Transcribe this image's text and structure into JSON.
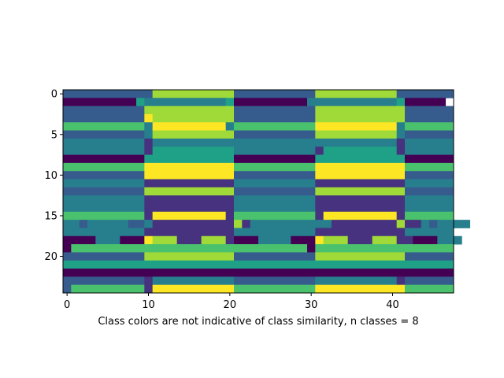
{
  "chart_data": {
    "type": "heatmap",
    "xlabel": "Class colors are not indicative of class similarity, n classes = 8",
    "x_ticks": [
      0,
      10,
      20,
      30,
      40
    ],
    "y_ticks": [
      0,
      5,
      10,
      15,
      20
    ],
    "xlim": [
      -0.5,
      47.5
    ],
    "ylim": [
      24.5,
      -0.5
    ],
    "n_classes": 8,
    "colormap": [
      "#440154",
      "#46327e",
      "#365c8d",
      "#277f8e",
      "#1fa187",
      "#4ac16d",
      "#a0da39",
      "#fde725"
    ],
    "grid": false,
    "runs_note": "each row = list of [class_index, run_length] from x=0 to x=47",
    "rows": [
      [
        [
          2,
          10
        ],
        [
          2,
          1
        ],
        [
          6,
          10
        ],
        [
          2,
          9
        ],
        [
          2,
          1
        ],
        [
          6,
          10
        ],
        [
          2,
          1
        ],
        [
          2,
          6
        ]
      ],
      [
        [
          0,
          9
        ],
        [
          4,
          1
        ],
        [
          3,
          10
        ],
        [
          4,
          1
        ],
        [
          0,
          9
        ],
        [
          3,
          11
        ],
        [
          4,
          1
        ],
        [
          0,
          5
        ]
      ],
      [
        [
          2,
          10
        ],
        [
          6,
          11
        ],
        [
          2,
          10
        ],
        [
          6,
          11
        ],
        [
          2,
          6
        ]
      ],
      [
        [
          2,
          10
        ],
        [
          7,
          1
        ],
        [
          6,
          10
        ],
        [
          2,
          10
        ],
        [
          6,
          11
        ],
        [
          2,
          6
        ]
      ],
      [
        [
          5,
          10
        ],
        [
          3,
          1
        ],
        [
          7,
          9
        ],
        [
          3,
          1
        ],
        [
          5,
          10
        ],
        [
          7,
          10
        ],
        [
          3,
          1
        ],
        [
          5,
          6
        ]
      ],
      [
        [
          2,
          10
        ],
        [
          3,
          1
        ],
        [
          6,
          10
        ],
        [
          2,
          10
        ],
        [
          6,
          10
        ],
        [
          3,
          1
        ],
        [
          2,
          6
        ]
      ],
      [
        [
          3,
          10
        ],
        [
          1,
          1
        ],
        [
          3,
          10
        ],
        [
          3,
          10
        ],
        [
          3,
          1
        ],
        [
          3,
          9
        ],
        [
          1,
          1
        ],
        [
          3,
          6
        ]
      ],
      [
        [
          3,
          10
        ],
        [
          1,
          1
        ],
        [
          4,
          10
        ],
        [
          3,
          10
        ],
        [
          1,
          1
        ],
        [
          4,
          9
        ],
        [
          1,
          1
        ],
        [
          3,
          6
        ]
      ],
      [
        [
          0,
          10
        ],
        [
          4,
          11
        ],
        [
          0,
          10
        ],
        [
          4,
          11
        ],
        [
          0,
          6
        ]
      ],
      [
        [
          5,
          10
        ],
        [
          7,
          11
        ],
        [
          5,
          10
        ],
        [
          7,
          11
        ],
        [
          5,
          6
        ]
      ],
      [
        [
          2,
          10
        ],
        [
          7,
          11
        ],
        [
          2,
          10
        ],
        [
          7,
          11
        ],
        [
          2,
          6
        ]
      ],
      [
        [
          3,
          10
        ],
        [
          1,
          11
        ],
        [
          3,
          10
        ],
        [
          1,
          11
        ],
        [
          3,
          6
        ]
      ],
      [
        [
          2,
          10
        ],
        [
          6,
          11
        ],
        [
          2,
          10
        ],
        [
          6,
          11
        ],
        [
          2,
          6
        ]
      ],
      [
        [
          3,
          10
        ],
        [
          1,
          11
        ],
        [
          3,
          10
        ],
        [
          1,
          11
        ],
        [
          3,
          6
        ]
      ],
      [
        [
          3,
          10
        ],
        [
          1,
          11
        ],
        [
          3,
          10
        ],
        [
          1,
          11
        ],
        [
          3,
          6
        ]
      ],
      [
        [
          5,
          10
        ],
        [
          1,
          1
        ],
        [
          7,
          9
        ],
        [
          1,
          1
        ],
        [
          5,
          10
        ],
        [
          1,
          1
        ],
        [
          7,
          9
        ],
        [
          1,
          1
        ],
        [
          5,
          6
        ]
      ],
      [
        [
          3,
          2
        ],
        [
          2,
          1
        ],
        [
          3,
          5
        ],
        [
          2,
          2
        ],
        [
          3,
          1
        ],
        [
          1,
          10
        ],
        [
          6,
          1
        ],
        [
          1,
          1
        ],
        [
          3,
          10
        ],
        [
          1,
          8
        ],
        [
          6,
          1
        ],
        [
          1,
          2
        ],
        [
          3,
          1
        ],
        [
          2,
          1
        ],
        [
          3,
          4
        ]
      ],
      [
        [
          3,
          10
        ],
        [
          1,
          11
        ],
        [
          3,
          10
        ],
        [
          1,
          11
        ],
        [
          3,
          6
        ]
      ],
      [
        [
          0,
          4
        ],
        [
          3,
          3
        ],
        [
          0,
          3
        ],
        [
          7,
          1
        ],
        [
          6,
          3
        ],
        [
          1,
          3
        ],
        [
          6,
          3
        ],
        [
          1,
          1
        ],
        [
          0,
          3
        ],
        [
          3,
          4
        ],
        [
          0,
          3
        ],
        [
          7,
          1
        ],
        [
          6,
          3
        ],
        [
          1,
          3
        ],
        [
          6,
          3
        ],
        [
          1,
          2
        ],
        [
          0,
          3
        ],
        [
          3,
          3
        ]
      ],
      [
        [
          0,
          1
        ],
        [
          5,
          9
        ],
        [
          5,
          1
        ],
        [
          5,
          10
        ],
        [
          5,
          9
        ],
        [
          0,
          1
        ],
        [
          5,
          11
        ],
        [
          5,
          6
        ]
      ],
      [
        [
          2,
          10
        ],
        [
          6,
          11
        ],
        [
          2,
          10
        ],
        [
          6,
          11
        ],
        [
          2,
          6
        ]
      ],
      [
        [
          4,
          10
        ],
        [
          4,
          11
        ],
        [
          4,
          10
        ],
        [
          4,
          11
        ],
        [
          4,
          6
        ]
      ],
      [
        [
          0,
          10
        ],
        [
          0,
          11
        ],
        [
          0,
          10
        ],
        [
          0,
          11
        ],
        [
          0,
          6
        ]
      ],
      [
        [
          2,
          10
        ],
        [
          1,
          1
        ],
        [
          3,
          10
        ],
        [
          2,
          10
        ],
        [
          3,
          10
        ],
        [
          1,
          1
        ],
        [
          2,
          6
        ]
      ],
      [
        [
          2,
          1
        ],
        [
          5,
          9
        ],
        [
          1,
          1
        ],
        [
          7,
          10
        ],
        [
          5,
          10
        ],
        [
          7,
          11
        ],
        [
          5,
          6
        ]
      ]
    ]
  }
}
